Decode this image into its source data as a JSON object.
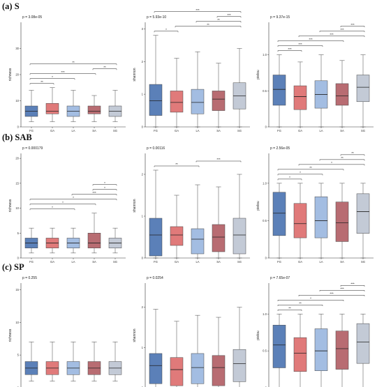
{
  "row_labels": [
    "(a) S",
    "(b) SAB",
    "(c) SP"
  ],
  "chart_data": [
    {
      "type": "box",
      "row": 0,
      "col": 0,
      "pvalue": "p = 3.08e-05",
      "ylabel": "richness",
      "ylim": [
        0,
        40
      ],
      "yticks": [
        0,
        10,
        20,
        30
      ],
      "yticklabels": [
        "0",
        "10",
        "20",
        "30"
      ],
      "categories": [
        "FG",
        "GA",
        "LA",
        "SA",
        "SG"
      ],
      "boxes": [
        {
          "whislo": 2,
          "q1": 4,
          "med": 6,
          "q3": 8,
          "whishi": 14
        },
        {
          "whislo": 2,
          "q1": 5,
          "med": 6,
          "q3": 9,
          "whishi": 15
        },
        {
          "whislo": 2,
          "q1": 4,
          "med": 6,
          "q3": 8,
          "whishi": 14
        },
        {
          "whislo": 2,
          "q1": 5,
          "med": 6,
          "q3": 8,
          "whishi": 12
        },
        {
          "whislo": 2,
          "q1": 4,
          "med": 6,
          "q3": 8,
          "whishi": 14
        }
      ],
      "brackets": [
        {
          "from": 0,
          "to": 1,
          "label": "**"
        },
        {
          "from": 0,
          "to": 2,
          "label": "*"
        },
        {
          "from": 0,
          "to": 3,
          "label": "***"
        },
        {
          "from": 3,
          "to": 4,
          "label": "**"
        },
        {
          "from": 0,
          "to": 4,
          "label": "**"
        }
      ]
    },
    {
      "type": "box",
      "row": 0,
      "col": 1,
      "pvalue": "p = 5.93e-10",
      "ylabel": "shannon",
      "ylim": [
        0,
        3.2
      ],
      "yticks": [
        0,
        1,
        2,
        3
      ],
      "yticklabels": [
        "0",
        "1",
        "2",
        "3"
      ],
      "categories": [
        "FG",
        "GA",
        "LA",
        "SA",
        "SG"
      ],
      "boxes": [
        {
          "whislo": 0,
          "q1": 0.35,
          "med": 0.8,
          "q3": 1.3,
          "whishi": 2.8
        },
        {
          "whislo": 0,
          "q1": 0.45,
          "med": 0.75,
          "q3": 1.1,
          "whishi": 2.1
        },
        {
          "whislo": 0,
          "q1": 0.4,
          "med": 0.75,
          "q3": 1.15,
          "whishi": 2.3
        },
        {
          "whislo": 0,
          "q1": 0.5,
          "med": 0.85,
          "q3": 1.1,
          "whishi": 1.95
        },
        {
          "whislo": 0,
          "q1": 0.55,
          "med": 0.95,
          "q3": 1.35,
          "whishi": 2.4
        }
      ],
      "brackets": [
        {
          "from": 0,
          "to": 1,
          "label": "*"
        },
        {
          "from": 1,
          "to": 4,
          "label": "**"
        },
        {
          "from": 2,
          "to": 4,
          "label": "**"
        },
        {
          "from": 3,
          "to": 4,
          "label": "***"
        },
        {
          "from": 0,
          "to": 4,
          "label": "***"
        }
      ]
    },
    {
      "type": "box",
      "row": 0,
      "col": 2,
      "pvalue": "p = 9.37e-15",
      "ylabel": "pielou",
      "ylim": [
        0,
        1.45
      ],
      "yticks": [
        0,
        0.5,
        1.0
      ],
      "yticklabels": [
        "0",
        "0.5",
        "1.0"
      ],
      "categories": [
        "FG",
        "GA",
        "LA",
        "SA",
        "SG"
      ],
      "boxes": [
        {
          "whislo": 0,
          "q1": 0.3,
          "med": 0.52,
          "q3": 0.72,
          "whishi": 1.0
        },
        {
          "whislo": 0,
          "q1": 0.24,
          "med": 0.42,
          "q3": 0.57,
          "whishi": 0.9
        },
        {
          "whislo": 0,
          "q1": 0.26,
          "med": 0.45,
          "q3": 0.64,
          "whishi": 1.0
        },
        {
          "whislo": 0,
          "q1": 0.3,
          "med": 0.43,
          "q3": 0.6,
          "whishi": 0.92
        },
        {
          "whislo": 0,
          "q1": 0.35,
          "med": 0.55,
          "q3": 0.72,
          "whishi": 1.0
        }
      ],
      "brackets": [
        {
          "from": 0,
          "to": 1,
          "label": "***"
        },
        {
          "from": 0,
          "to": 2,
          "label": "***"
        },
        {
          "from": 0,
          "to": 3,
          "label": "***"
        },
        {
          "from": 1,
          "to": 4,
          "label": "***"
        },
        {
          "from": 2,
          "to": 4,
          "label": "***"
        },
        {
          "from": 3,
          "to": 4,
          "label": "***"
        }
      ]
    },
    {
      "type": "box",
      "row": 1,
      "col": 0,
      "pvalue": "p = 0.000179",
      "ylabel": "richness",
      "ylim": [
        0,
        21
      ],
      "yticks": [
        0,
        5,
        10,
        15,
        20
      ],
      "yticklabels": [
        "0",
        "5",
        "10",
        "15",
        "20"
      ],
      "categories": [
        "FG",
        "GA",
        "LA",
        "SA",
        "SG"
      ],
      "boxes": [
        {
          "whislo": 1,
          "q1": 2,
          "med": 3,
          "q3": 4,
          "whishi": 6
        },
        {
          "whislo": 1,
          "q1": 2,
          "med": 3,
          "q3": 4,
          "whishi": 6
        },
        {
          "whislo": 1,
          "q1": 2,
          "med": 3,
          "q3": 4,
          "whishi": 6
        },
        {
          "whislo": 1,
          "q1": 2,
          "med": 3,
          "q3": 5,
          "whishi": 9
        },
        {
          "whislo": 1,
          "q1": 2,
          "med": 3,
          "q3": 4,
          "whishi": 6
        }
      ],
      "brackets": [
        {
          "from": 0,
          "to": 2,
          "label": "*"
        },
        {
          "from": 0,
          "to": 3,
          "label": "*"
        },
        {
          "from": 0,
          "to": 4,
          "label": "*"
        },
        {
          "from": 2,
          "to": 4,
          "label": "***"
        },
        {
          "from": 3,
          "to": 4,
          "label": "*"
        },
        {
          "from": 3,
          "to": 4,
          "label": "*"
        }
      ]
    },
    {
      "type": "box",
      "row": 1,
      "col": 1,
      "pvalue": "p = 0.00116",
      "ylabel": "shannon",
      "ylim": [
        0,
        2.5
      ],
      "yticks": [
        0,
        1,
        2
      ],
      "yticklabels": [
        "0",
        "1",
        "2"
      ],
      "categories": [
        "FG",
        "GA",
        "LA",
        "SA",
        "SG"
      ],
      "boxes": [
        {
          "whislo": 0,
          "q1": 0.05,
          "med": 0.55,
          "q3": 0.95,
          "whishi": 2.1
        },
        {
          "whislo": 0,
          "q1": 0.3,
          "med": 0.55,
          "q3": 0.75,
          "whishi": 1.5
        },
        {
          "whislo": 0,
          "q1": 0.1,
          "med": 0.45,
          "q3": 0.7,
          "whishi": 1.75
        },
        {
          "whislo": 0,
          "q1": 0.15,
          "med": 0.5,
          "q3": 0.8,
          "whishi": 1.7
        },
        {
          "whislo": 0,
          "q1": 0.1,
          "med": 0.55,
          "q3": 0.95,
          "whishi": 2.0
        }
      ],
      "brackets": [
        {
          "from": 0,
          "to": 2,
          "label": "**"
        },
        {
          "from": 2,
          "to": 4,
          "label": "***"
        }
      ]
    },
    {
      "type": "box",
      "row": 1,
      "col": 2,
      "pvalue": "p = 2.56e-05",
      "ylabel": "pielou",
      "ylim": [
        0,
        1.4
      ],
      "yticks": [
        0,
        0.5,
        1.0
      ],
      "yticklabels": [
        "0",
        "0.5",
        "1.0"
      ],
      "categories": [
        "FG",
        "GA",
        "LA",
        "SA",
        "SG"
      ],
      "boxes": [
        {
          "whislo": 0,
          "q1": 0.3,
          "med": 0.6,
          "q3": 0.88,
          "whishi": 1.0
        },
        {
          "whislo": 0,
          "q1": 0.27,
          "med": 0.46,
          "q3": 0.73,
          "whishi": 1.0
        },
        {
          "whislo": 0,
          "q1": 0.27,
          "med": 0.5,
          "q3": 0.82,
          "whishi": 1.0
        },
        {
          "whislo": 0,
          "q1": 0.22,
          "med": 0.47,
          "q3": 0.75,
          "whishi": 1.0
        },
        {
          "whislo": 0,
          "q1": 0.33,
          "med": 0.62,
          "q3": 0.86,
          "whishi": 1.0
        }
      ],
      "brackets": [
        {
          "from": 0,
          "to": 1,
          "label": "*"
        },
        {
          "from": 0,
          "to": 2,
          "label": "*"
        },
        {
          "from": 0,
          "to": 3,
          "label": "**"
        },
        {
          "from": 1,
          "to": 4,
          "label": "*"
        },
        {
          "from": 2,
          "to": 4,
          "label": "**"
        },
        {
          "from": 3,
          "to": 4,
          "label": "**"
        }
      ]
    },
    {
      "type": "box",
      "row": 2,
      "col": 0,
      "pvalue": "p = 0.255",
      "ylabel": "richness",
      "ylim": [
        0,
        16
      ],
      "yticks": [
        0,
        5,
        10,
        15
      ],
      "yticklabels": [
        "0",
        "5",
        "10",
        "15"
      ],
      "categories": [
        "FG",
        "GA",
        "LA",
        "SA",
        "SG"
      ],
      "boxes": [
        {
          "whislo": 1,
          "q1": 2,
          "med": 3,
          "q3": 4,
          "whishi": 7
        },
        {
          "whislo": 1,
          "q1": 2,
          "med": 3,
          "q3": 4,
          "whishi": 7
        },
        {
          "whislo": 1,
          "q1": 2,
          "med": 3,
          "q3": 4,
          "whishi": 7
        },
        {
          "whislo": 1,
          "q1": 2,
          "med": 3,
          "q3": 4,
          "whishi": 7
        },
        {
          "whislo": 1,
          "q1": 2,
          "med": 3,
          "q3": 4,
          "whishi": 7
        }
      ],
      "brackets": []
    },
    {
      "type": "box",
      "row": 2,
      "col": 1,
      "pvalue": "p = 0.0254",
      "ylabel": "shannon",
      "ylim": [
        0,
        2.6
      ],
      "yticks": [
        0,
        1,
        2
      ],
      "yticklabels": [
        "0",
        "1",
        "2"
      ],
      "categories": [
        "FG",
        "GA",
        "LA",
        "SA",
        "SG"
      ],
      "boxes": [
        {
          "whislo": 0,
          "q1": 0.1,
          "med": 0.55,
          "q3": 0.85,
          "whishi": 1.95
        },
        {
          "whislo": 0,
          "q1": 0.05,
          "med": 0.45,
          "q3": 0.75,
          "whishi": 1.65
        },
        {
          "whislo": 0,
          "q1": 0.1,
          "med": 0.5,
          "q3": 0.85,
          "whishi": 1.8
        },
        {
          "whislo": 0,
          "q1": 0.05,
          "med": 0.5,
          "q3": 0.8,
          "whishi": 1.75
        },
        {
          "whislo": 0,
          "q1": 0.15,
          "med": 0.6,
          "q3": 0.95,
          "whishi": 2.0
        }
      ],
      "brackets": []
    },
    {
      "type": "box",
      "row": 2,
      "col": 2,
      "pvalue": "p = 7.65e-07",
      "ylabel": "pielou",
      "ylim": [
        0,
        1.42
      ],
      "yticks": [
        0,
        0.5,
        1.0
      ],
      "yticklabels": [
        "0",
        "0.5",
        "1.0"
      ],
      "categories": [
        "FG",
        "GA",
        "LA",
        "SA",
        "SG"
      ],
      "boxes": [
        {
          "whislo": 0,
          "q1": 0.27,
          "med": 0.58,
          "q3": 0.85,
          "whishi": 1.0
        },
        {
          "whislo": 0,
          "q1": 0.22,
          "med": 0.47,
          "q3": 0.68,
          "whishi": 1.0
        },
        {
          "whislo": 0,
          "q1": 0.23,
          "med": 0.5,
          "q3": 0.8,
          "whishi": 1.0
        },
        {
          "whislo": 0,
          "q1": 0.25,
          "med": 0.53,
          "q3": 0.77,
          "whishi": 1.0
        },
        {
          "whislo": 0,
          "q1": 0.33,
          "med": 0.62,
          "q3": 0.87,
          "whishi": 1.0
        }
      ],
      "brackets": [
        {
          "from": 0,
          "to": 1,
          "label": "**"
        },
        {
          "from": 0,
          "to": 2,
          "label": "**"
        },
        {
          "from": 0,
          "to": 3,
          "label": "*"
        },
        {
          "from": 1,
          "to": 4,
          "label": "***"
        },
        {
          "from": 2,
          "to": 4,
          "label": "***"
        },
        {
          "from": 3,
          "to": 4,
          "label": "***"
        }
      ]
    }
  ],
  "colors": {
    "FG": "#5b80b8",
    "GA": "#e07a7a",
    "LA": "#a3bde2",
    "SA": "#b86c72",
    "SG": "#c3cad6"
  }
}
